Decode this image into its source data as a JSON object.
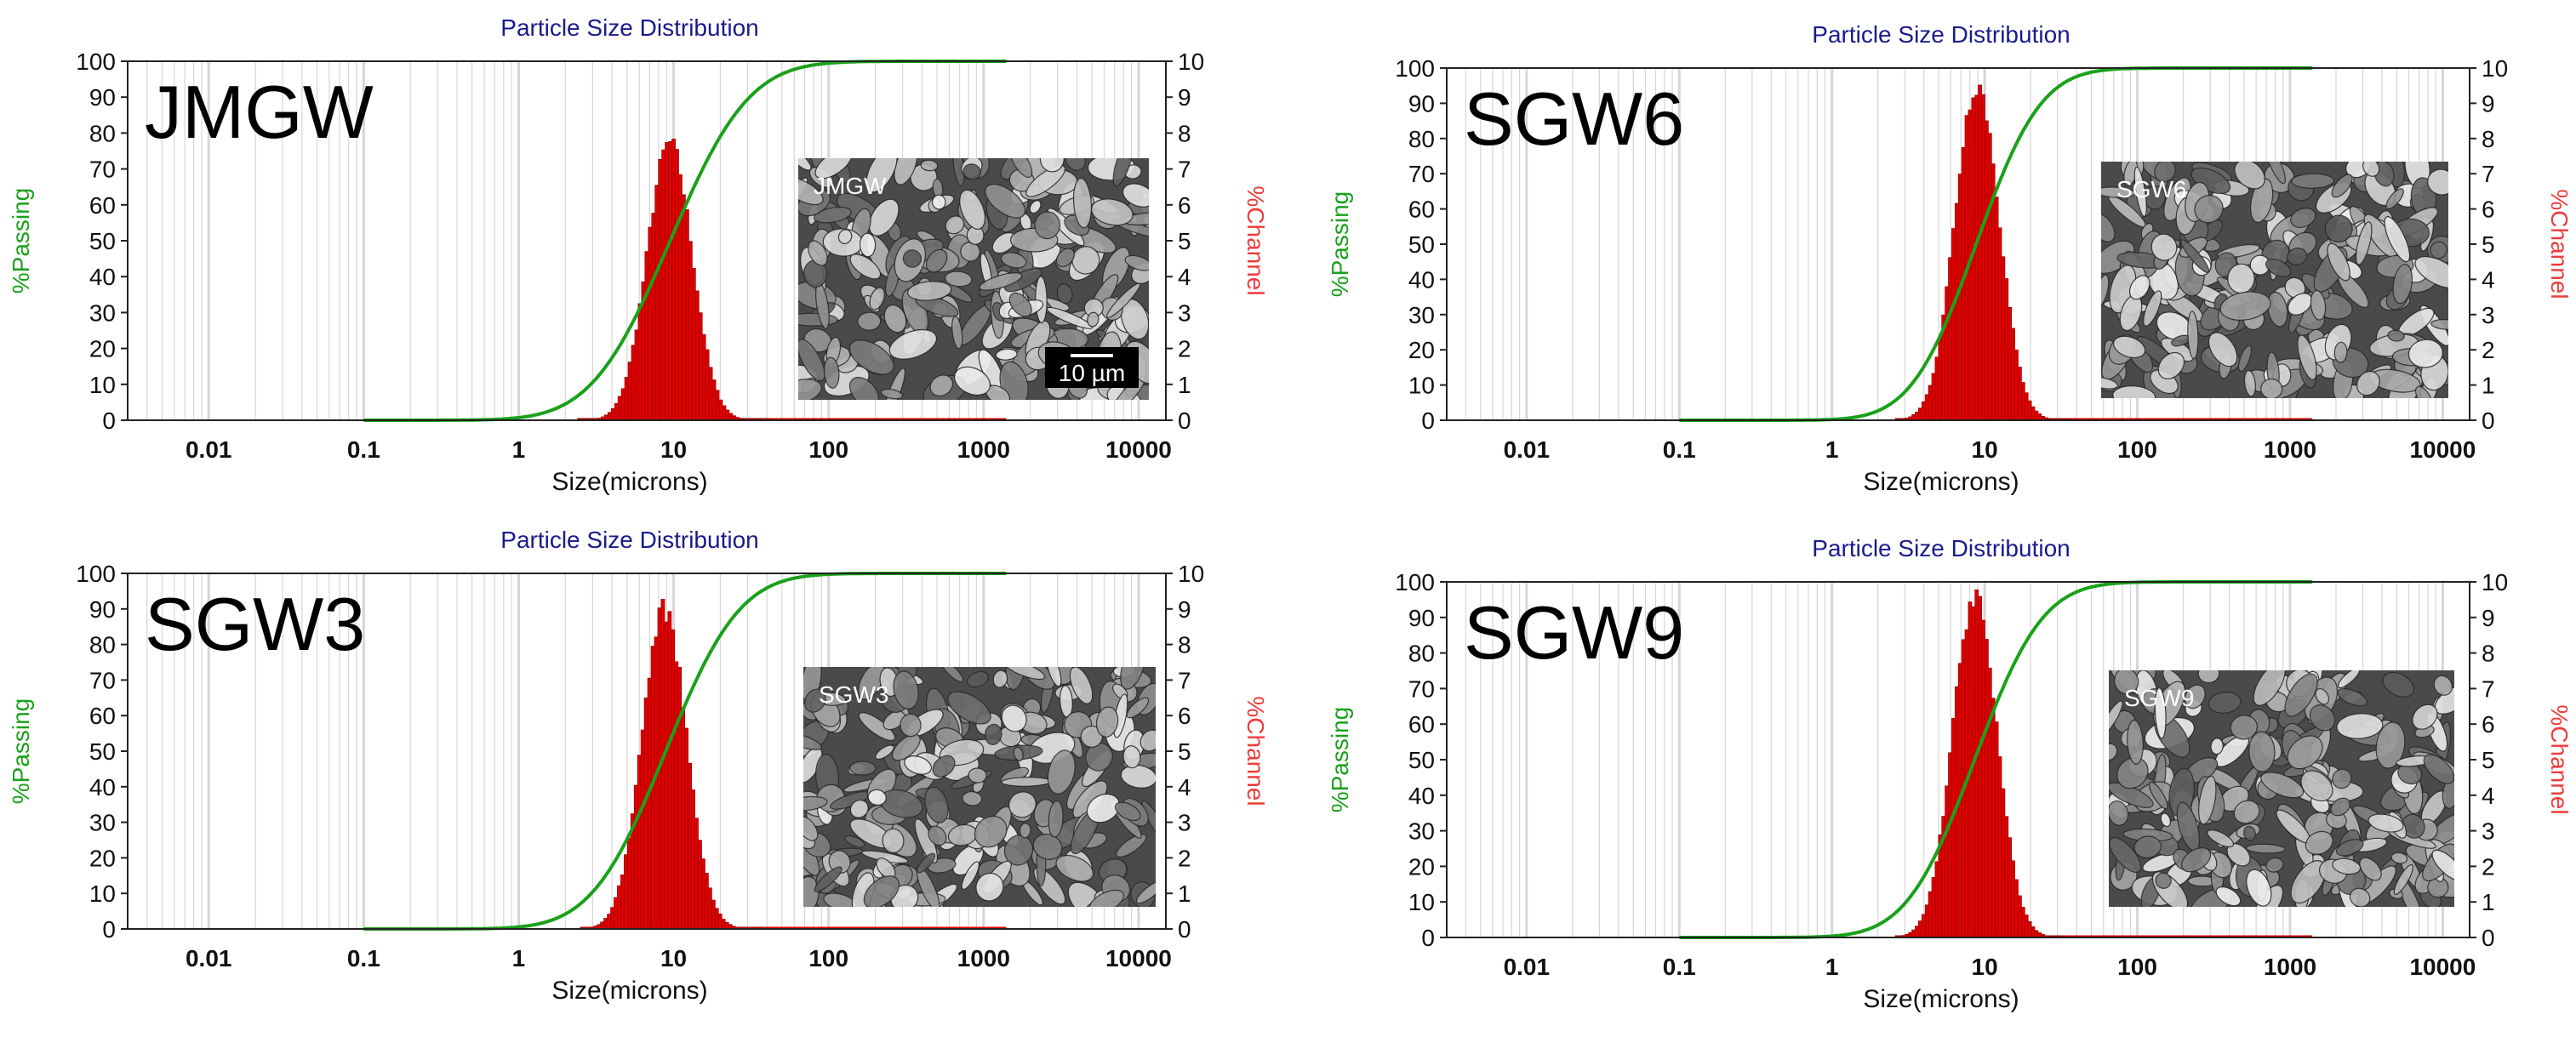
{
  "colors": {
    "passing": "#1aa11a",
    "channel": "#e00000",
    "grid": "#d6d6d6",
    "title": "#1a1a8c",
    "channel_label": "#ee3b3b"
  },
  "chart_data": [
    {
      "type": "bar+line",
      "title": "Particle Size Distribution",
      "panel_label": "JMGW",
      "image_label": "JMGW",
      "scale_bar": "10 µm",
      "xlabel": "Size(microns)",
      "ylabel_left": "%Passing",
      "ylabel_right": "%Channel",
      "xscale": "log",
      "xlim": [
        0.003,
        15000
      ],
      "x_ticks": [
        "0.01",
        "0.1",
        "1",
        "10",
        "100",
        "1000",
        "10000"
      ],
      "ylim_left": [
        0,
        100
      ],
      "ylim_right": [
        0,
        10
      ],
      "y_ticks_left": [
        "0",
        "10",
        "20",
        "30",
        "40",
        "50",
        "60",
        "70",
        "80",
        "90",
        "100"
      ],
      "y_ticks_right": [
        "0",
        "1",
        "2",
        "3",
        "4",
        "5",
        "6",
        "7",
        "8",
        "9",
        "10"
      ],
      "series": [
        {
          "name": "%Passing",
          "axis": "left",
          "kind": "cumulative line",
          "range": [
            0.1,
            1400
          ],
          "median": 9.5,
          "spread": 0.48
        },
        {
          "name": "%Channel",
          "axis": "right",
          "kind": "histogram",
          "range": [
            0.1,
            1400
          ],
          "peak_size": 9.2,
          "peak_value": 8.0,
          "min_size": 2.4,
          "max_size": 42
        }
      ]
    },
    {
      "type": "bar+line",
      "title": "Particle Size Distribution",
      "panel_label": "SGW6",
      "image_label": "SGW6",
      "xlabel": "Size(microns)",
      "ylabel_left": "%Passing",
      "ylabel_right": "%Channel",
      "xscale": "log",
      "xlim": [
        0.003,
        15000
      ],
      "x_ticks": [
        "0.01",
        "0.1",
        "1",
        "10",
        "100",
        "1000",
        "10000"
      ],
      "ylim_left": [
        0,
        100
      ],
      "ylim_right": [
        0,
        10
      ],
      "y_ticks_left": [
        "0",
        "10",
        "20",
        "30",
        "40",
        "50",
        "60",
        "70",
        "80",
        "90",
        "100"
      ],
      "y_ticks_right": [
        "0",
        "1",
        "2",
        "3",
        "4",
        "5",
        "6",
        "7",
        "8",
        "9",
        "10"
      ],
      "series": [
        {
          "name": "%Passing",
          "axis": "left",
          "kind": "cumulative line",
          "range": [
            0.1,
            1400
          ],
          "median": 8.8,
          "spread": 0.4
        },
        {
          "name": "%Channel",
          "axis": "right",
          "kind": "histogram",
          "range": [
            0.1,
            1400
          ],
          "peak_size": 8.7,
          "peak_value": 9.9,
          "min_size": 2.6,
          "max_size": 36
        }
      ]
    },
    {
      "type": "bar+line",
      "title": "Particle Size Distribution",
      "panel_label": "SGW3",
      "image_label": "SGW3",
      "xlabel": "Size(microns)",
      "ylabel_left": "%Passing",
      "ylabel_right": "%Channel",
      "xscale": "log",
      "xlim": [
        0.003,
        15000
      ],
      "x_ticks": [
        "0.01",
        "0.1",
        "1",
        "10",
        "100",
        "1000",
        "10000"
      ],
      "ylim_left": [
        0,
        100
      ],
      "ylim_right": [
        0,
        10
      ],
      "y_ticks_left": [
        "0",
        "10",
        "20",
        "30",
        "40",
        "50",
        "60",
        "70",
        "80",
        "90",
        "100"
      ],
      "y_ticks_right": [
        "0",
        "1",
        "2",
        "3",
        "4",
        "5",
        "6",
        "7",
        "8",
        "9",
        "10"
      ],
      "series": [
        {
          "name": "%Passing",
          "axis": "left",
          "kind": "cumulative line",
          "range": [
            0.1,
            1400
          ],
          "median": 8.9,
          "spread": 0.45
        },
        {
          "name": "%Channel",
          "axis": "right",
          "kind": "histogram",
          "range": [
            0.1,
            1400
          ],
          "peak_size": 8.5,
          "peak_value": 9.3,
          "min_size": 2.5,
          "max_size": 38
        }
      ]
    },
    {
      "type": "bar+line",
      "title": "Particle Size Distribution",
      "panel_label": "SGW9",
      "image_label": "SGW9",
      "xlabel": "Size(microns)",
      "ylabel_left": "%Passing",
      "ylabel_right": "%Channel",
      "xscale": "log",
      "xlim": [
        0.003,
        15000
      ],
      "x_ticks": [
        "0.01",
        "0.1",
        "1",
        "10",
        "100",
        "1000",
        "10000"
      ],
      "ylim_left": [
        0,
        100
      ],
      "ylim_right": [
        0,
        10
      ],
      "y_ticks_left": [
        "0",
        "10",
        "20",
        "30",
        "40",
        "50",
        "60",
        "70",
        "80",
        "90",
        "100"
      ],
      "y_ticks_right": [
        "0",
        "1",
        "2",
        "3",
        "4",
        "5",
        "6",
        "7",
        "8",
        "9",
        "10"
      ],
      "series": [
        {
          "name": "%Passing",
          "axis": "left",
          "kind": "cumulative line",
          "range": [
            0.1,
            1400
          ],
          "median": 8.6,
          "spread": 0.42
        },
        {
          "name": "%Channel",
          "axis": "right",
          "kind": "histogram",
          "range": [
            0.1,
            1400
          ],
          "peak_size": 8.4,
          "peak_value": 9.9,
          "min_size": 2.6,
          "max_size": 32
        }
      ]
    }
  ]
}
